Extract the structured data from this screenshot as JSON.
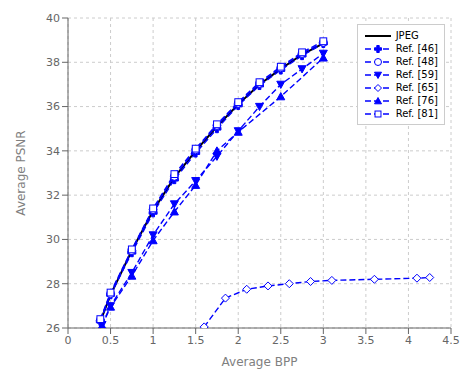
{
  "chart_data": {
    "type": "line",
    "xlabel": "Average BPP",
    "ylabel": "Average PSNR",
    "xlim": [
      0,
      4.5
    ],
    "ylim": [
      26,
      40
    ],
    "xticks": [
      0,
      0.5,
      1,
      1.5,
      2,
      2.5,
      3,
      3.5,
      4,
      4.5
    ],
    "yticks": [
      26,
      28,
      30,
      32,
      34,
      36,
      38,
      40
    ],
    "grid": true,
    "legend": "upper right",
    "series": [
      {
        "name": "JPEG",
        "color": "#000000",
        "line_style": "solid",
        "x": [
          0.38,
          0.5,
          0.75,
          1.0,
          1.25,
          1.5,
          1.75,
          2.0,
          2.25,
          2.5,
          2.75,
          3.0
        ],
        "values": [
          26.3,
          27.5,
          29.5,
          31.3,
          32.8,
          34.0,
          35.1,
          36.1,
          37.0,
          37.7,
          38.35,
          38.85
        ]
      },
      {
        "name": "Ref. [46]",
        "color": "#0000ff",
        "line_style": "dashed",
        "marker": "plus",
        "x": [
          0.38,
          0.5,
          0.75,
          1.0,
          1.25,
          1.5,
          1.75,
          2.0,
          2.25,
          2.5,
          2.75,
          3.0
        ],
        "values": [
          26.3,
          27.5,
          29.4,
          31.2,
          32.7,
          33.9,
          35.0,
          36.05,
          36.95,
          37.65,
          38.3,
          38.85
        ]
      },
      {
        "name": "Ref. [48]",
        "color": "#0000ff",
        "line_style": "dashed",
        "marker": "circle_open",
        "x": [
          0.38,
          0.5,
          0.75,
          1.0,
          1.25,
          1.5,
          1.75,
          2.0,
          2.25,
          2.5,
          2.75,
          3.0
        ],
        "values": [
          26.35,
          27.55,
          29.5,
          31.35,
          32.85,
          34.05,
          35.15,
          36.15,
          37.05,
          37.75,
          38.4,
          38.9
        ]
      },
      {
        "name": "Ref. [59]",
        "color": "#0000ff",
        "line_style": "dashed",
        "marker": "triangle_down",
        "x": [
          0.4,
          0.5,
          0.75,
          1.0,
          1.25,
          1.5,
          1.75,
          2.0,
          2.25,
          2.5,
          2.75,
          3.0
        ],
        "values": [
          26.15,
          27.0,
          28.5,
          30.2,
          31.6,
          32.65,
          33.75,
          34.9,
          36.0,
          37.0,
          37.7,
          38.4
        ]
      },
      {
        "name": "Ref. [65]",
        "color": "#0000ff",
        "line_style": "dashed",
        "marker": "diamond_open",
        "x": [
          1.6,
          1.85,
          2.1,
          2.35,
          2.6,
          2.85,
          3.1,
          3.6,
          4.1,
          4.25
        ],
        "values": [
          26.05,
          27.35,
          27.75,
          27.9,
          28.0,
          28.1,
          28.15,
          28.2,
          28.25,
          28.28
        ]
      },
      {
        "name": "Ref. [76]",
        "color": "#0000ff",
        "line_style": "dashed",
        "marker": "triangle_up",
        "x": [
          0.4,
          0.5,
          0.75,
          1.0,
          1.25,
          1.5,
          1.75,
          2.0,
          2.5,
          3.0
        ],
        "values": [
          26.1,
          26.95,
          28.35,
          29.95,
          31.25,
          32.45,
          34.0,
          34.85,
          36.45,
          38.2
        ]
      },
      {
        "name": "Ref. [81]",
        "color": "#0000ff",
        "line_style": "dashed",
        "marker": "square_open",
        "x": [
          0.38,
          0.5,
          0.75,
          1.0,
          1.25,
          1.5,
          1.75,
          2.0,
          2.25,
          2.5,
          2.75,
          3.0
        ],
        "values": [
          26.4,
          27.6,
          29.55,
          31.4,
          32.95,
          34.1,
          35.2,
          36.2,
          37.1,
          37.8,
          38.45,
          38.95
        ]
      }
    ]
  }
}
